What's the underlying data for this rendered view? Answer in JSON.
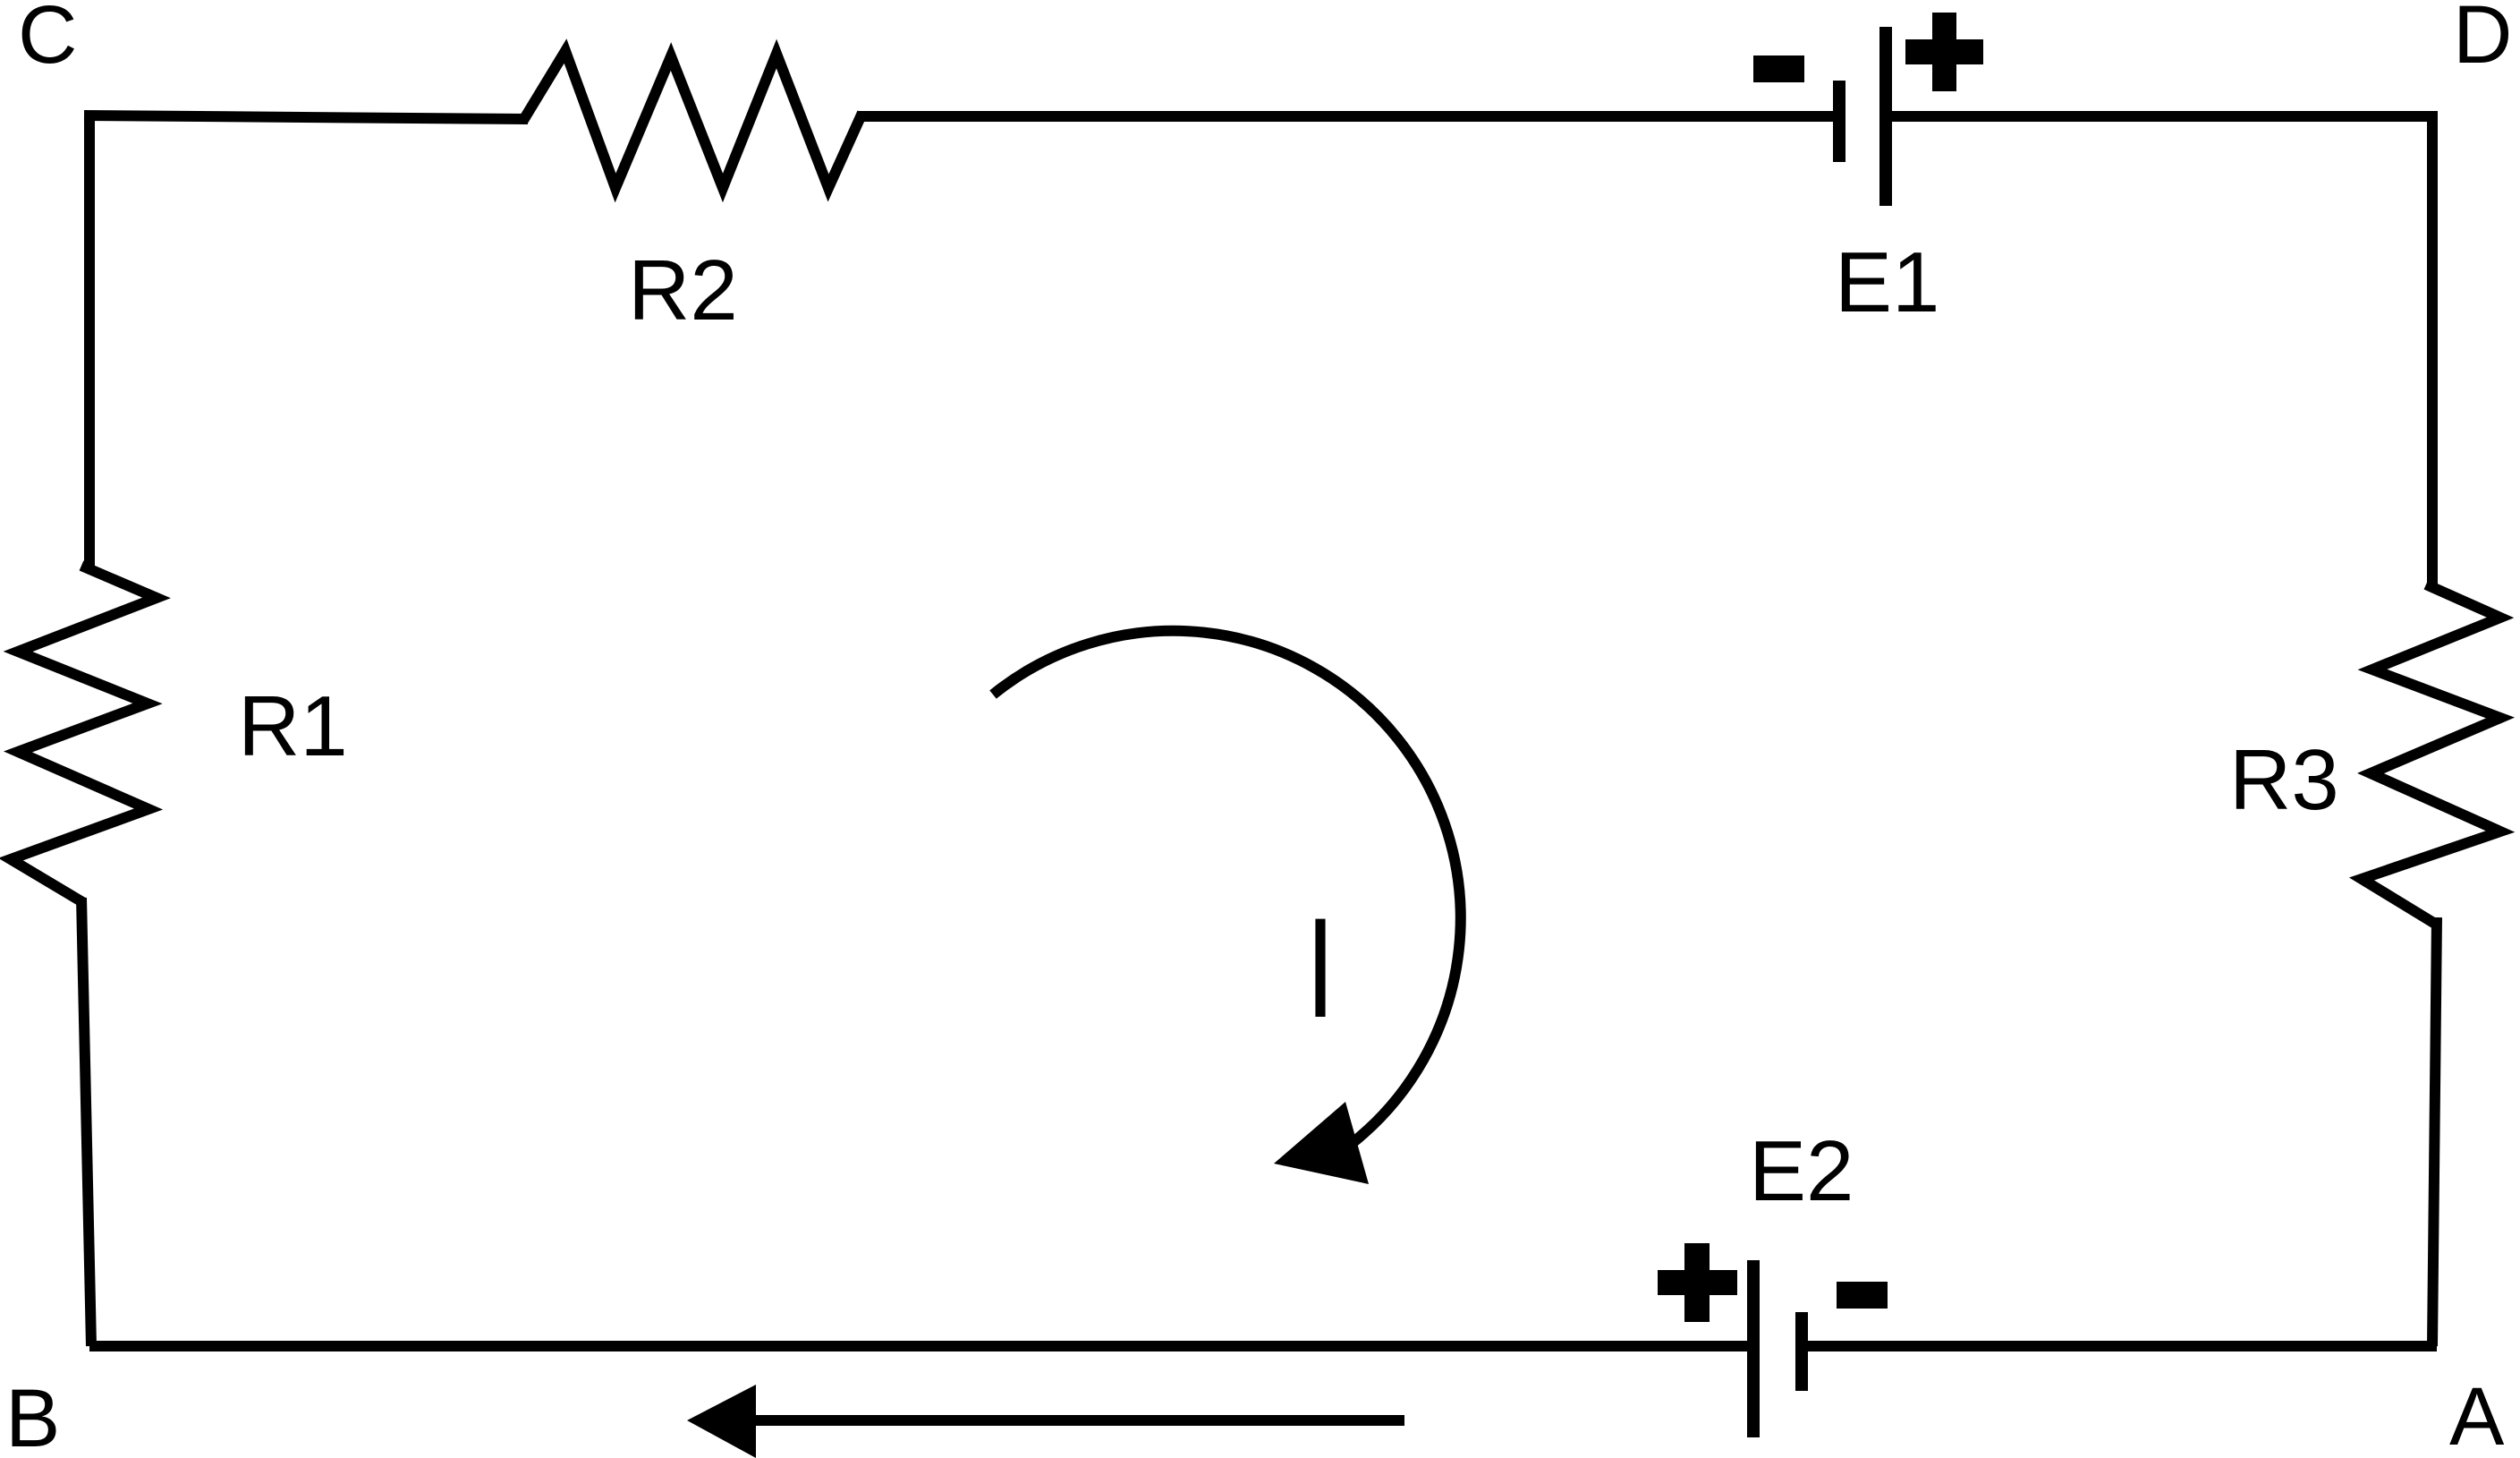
{
  "nodes": {
    "a": "A",
    "b": "B",
    "c": "C",
    "d": "D"
  },
  "components": {
    "r1": "R1",
    "r2": "R2",
    "r3": "R3",
    "e1": "E1",
    "e2": "E2"
  },
  "current_label": "I",
  "colors": {
    "stroke": "#000000",
    "background": "#ffffff"
  }
}
